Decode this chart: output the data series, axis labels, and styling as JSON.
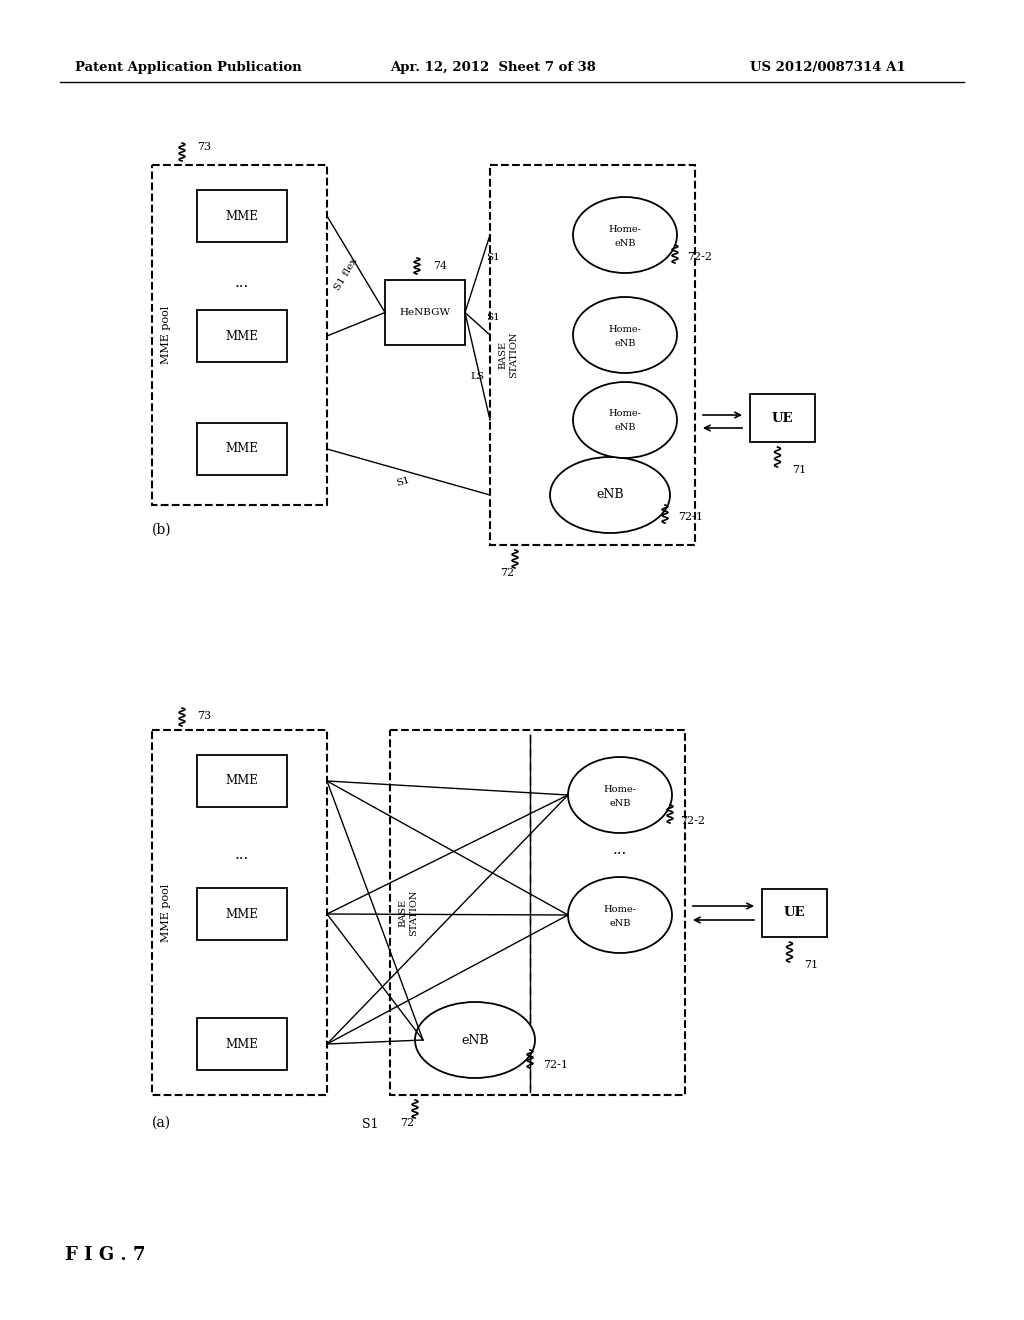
{
  "title_left": "Patent Application Publication",
  "title_center": "Apr. 12, 2012  Sheet 7 of 38",
  "title_right": "US 2012/0087314 A1",
  "fig_label": "F I G . 7",
  "background_color": "#ffffff"
}
